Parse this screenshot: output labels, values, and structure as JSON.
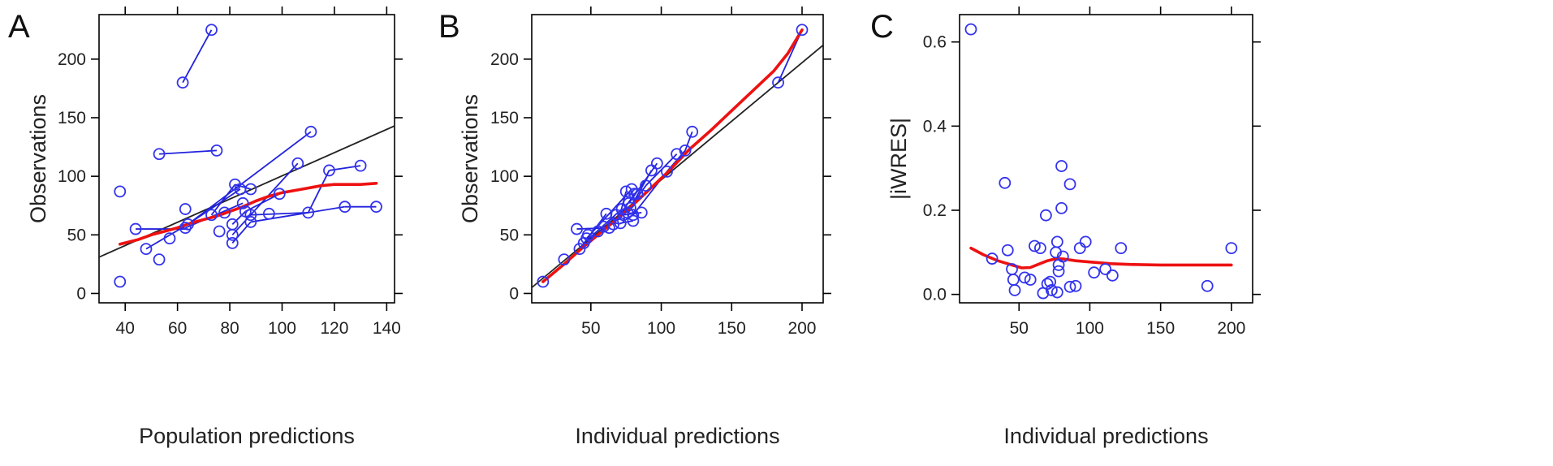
{
  "style": {
    "point_color": "#3333ee",
    "line_color": "#2222dd",
    "smooth_color": "#ee1111",
    "identity_color": "#222222",
    "axis_color": "#000000"
  },
  "chart_data": [
    {
      "type": "scatter",
      "panel_label": "A",
      "title": "",
      "xlabel": "Population predictions",
      "ylabel": "Observations",
      "xlim": [
        30,
        143
      ],
      "ylim": [
        -8,
        238
      ],
      "xticks": [
        40,
        60,
        80,
        100,
        120,
        140
      ],
      "yticks": [
        0,
        50,
        100,
        150,
        200
      ],
      "grid": false,
      "legend": "none",
      "reference_line": [
        [
          30,
          31
        ],
        [
          143,
          143
        ]
      ],
      "points": [
        [
          38,
          87
        ],
        [
          38,
          10
        ],
        [
          44,
          55
        ],
        [
          48,
          38
        ],
        [
          53,
          29
        ],
        [
          53,
          119
        ],
        [
          57,
          47
        ],
        [
          62,
          180
        ],
        [
          63,
          72
        ],
        [
          63,
          56
        ],
        [
          64,
          59
        ],
        [
          73,
          225
        ],
        [
          73,
          67
        ],
        [
          75,
          122
        ],
        [
          76,
          53
        ],
        [
          78,
          69
        ],
        [
          81,
          43
        ],
        [
          81,
          50
        ],
        [
          81,
          59
        ],
        [
          82,
          93
        ],
        [
          84,
          89
        ],
        [
          85,
          77
        ],
        [
          86,
          70
        ],
        [
          88,
          61
        ],
        [
          88,
          67
        ],
        [
          88,
          89
        ],
        [
          95,
          68
        ],
        [
          99,
          85
        ],
        [
          106,
          111
        ],
        [
          110,
          69
        ],
        [
          111,
          138
        ],
        [
          118,
          105
        ],
        [
          124,
          74
        ],
        [
          130,
          109
        ],
        [
          136,
          74
        ]
      ],
      "segments": [
        [
          [
            62,
            180
          ],
          [
            73,
            225
          ]
        ],
        [
          [
            53,
            119
          ],
          [
            75,
            122
          ]
        ],
        [
          [
            44,
            55
          ],
          [
            64,
            55
          ]
        ],
        [
          [
            48,
            38
          ],
          [
            64,
            59
          ]
        ],
        [
          [
            64,
            59
          ],
          [
            84,
            89
          ]
        ],
        [
          [
            63,
            56
          ],
          [
            85,
            77
          ]
        ],
        [
          [
            73,
            67
          ],
          [
            82,
            93
          ]
        ],
        [
          [
            82,
            93
          ],
          [
            88,
            89
          ]
        ],
        [
          [
            81,
            50
          ],
          [
            106,
            111
          ]
        ],
        [
          [
            64,
            59
          ],
          [
            111,
            138
          ]
        ],
        [
          [
            81,
            43
          ],
          [
            88,
            61
          ]
        ],
        [
          [
            88,
            67
          ],
          [
            110,
            69
          ]
        ],
        [
          [
            110,
            69
          ],
          [
            118,
            105
          ]
        ],
        [
          [
            118,
            105
          ],
          [
            130,
            109
          ]
        ],
        [
          [
            88,
            61
          ],
          [
            124,
            74
          ]
        ],
        [
          [
            124,
            74
          ],
          [
            136,
            74
          ]
        ],
        [
          [
            81,
            59
          ],
          [
            86,
            70
          ]
        ],
        [
          [
            86,
            70
          ],
          [
            99,
            85
          ]
        ]
      ],
      "smooth": [
        [
          38,
          42
        ],
        [
          45,
          46
        ],
        [
          50,
          50
        ],
        [
          55,
          53
        ],
        [
          60,
          56
        ],
        [
          65,
          60
        ],
        [
          70,
          63
        ],
        [
          75,
          66
        ],
        [
          80,
          70
        ],
        [
          85,
          74
        ],
        [
          90,
          79
        ],
        [
          95,
          83
        ],
        [
          100,
          86
        ],
        [
          105,
          88
        ],
        [
          110,
          90
        ],
        [
          115,
          92
        ],
        [
          120,
          93
        ],
        [
          125,
          93
        ],
        [
          130,
          93
        ],
        [
          136,
          94
        ]
      ]
    },
    {
      "type": "scatter",
      "panel_label": "B",
      "title": "",
      "xlabel": "Individual predictions",
      "ylabel": "Observations",
      "xlim": [
        8,
        215
      ],
      "ylim": [
        -8,
        238
      ],
      "xticks": [
        50,
        100,
        150,
        200
      ],
      "yticks": [
        0,
        50,
        100,
        150,
        200
      ],
      "grid": false,
      "legend": "none",
      "reference_line": [
        [
          8,
          5
        ],
        [
          215,
          212
        ]
      ],
      "points": [
        [
          16,
          10
        ],
        [
          31,
          29
        ],
        [
          40,
          55
        ],
        [
          42,
          38
        ],
        [
          45,
          43
        ],
        [
          47,
          47
        ],
        [
          48,
          50
        ],
        [
          55,
          53
        ],
        [
          59,
          57
        ],
        [
          61,
          68
        ],
        [
          63,
          56
        ],
        [
          66,
          59
        ],
        [
          68,
          67
        ],
        [
          70,
          64
        ],
        [
          71,
          60
        ],
        [
          72,
          72
        ],
        [
          73,
          67
        ],
        [
          75,
          87
        ],
        [
          76,
          69
        ],
        [
          77,
          77
        ],
        [
          78,
          73
        ],
        [
          79,
          89
        ],
        [
          80,
          67
        ],
        [
          80,
          62
        ],
        [
          81,
          85
        ],
        [
          83,
          85
        ],
        [
          86,
          69
        ],
        [
          89,
          92
        ],
        [
          93,
          105
        ],
        [
          97,
          111
        ],
        [
          104,
          104
        ],
        [
          111,
          119
        ],
        [
          117,
          122
        ],
        [
          122,
          138
        ],
        [
          183,
          180
        ],
        [
          200,
          225
        ]
      ],
      "segments": [
        [
          [
            183,
            180
          ],
          [
            200,
            225
          ]
        ],
        [
          [
            40,
            55
          ],
          [
            63,
            56
          ]
        ],
        [
          [
            42,
            38
          ],
          [
            61,
            68
          ]
        ],
        [
          [
            45,
            43
          ],
          [
            72,
            72
          ]
        ],
        [
          [
            47,
            47
          ],
          [
            79,
            89
          ]
        ],
        [
          [
            66,
            59
          ],
          [
            81,
            85
          ]
        ],
        [
          [
            70,
            64
          ],
          [
            75,
            87
          ]
        ],
        [
          [
            71,
            60
          ],
          [
            80,
            62
          ]
        ],
        [
          [
            73,
            67
          ],
          [
            86,
            69
          ]
        ],
        [
          [
            76,
            69
          ],
          [
            93,
            105
          ]
        ],
        [
          [
            77,
            77
          ],
          [
            97,
            111
          ]
        ],
        [
          [
            78,
            73
          ],
          [
            89,
            92
          ]
        ],
        [
          [
            80,
            67
          ],
          [
            104,
            104
          ]
        ],
        [
          [
            89,
            92
          ],
          [
            111,
            119
          ]
        ],
        [
          [
            104,
            104
          ],
          [
            117,
            122
          ]
        ],
        [
          [
            117,
            122
          ],
          [
            122,
            138
          ]
        ]
      ],
      "smooth": [
        [
          16,
          10
        ],
        [
          30,
          24
        ],
        [
          45,
          40
        ],
        [
          60,
          55
        ],
        [
          75,
          70
        ],
        [
          90,
          87
        ],
        [
          105,
          104
        ],
        [
          120,
          123
        ],
        [
          135,
          139
        ],
        [
          150,
          156
        ],
        [
          165,
          173
        ],
        [
          180,
          190
        ],
        [
          190,
          205
        ],
        [
          200,
          225
        ]
      ]
    },
    {
      "type": "scatter",
      "panel_label": "C",
      "title": "",
      "xlabel": "Individual predictions",
      "ylabel": "|iWRES|",
      "xlim": [
        8,
        215
      ],
      "ylim": [
        -0.02,
        0.665
      ],
      "xticks": [
        50,
        100,
        150,
        200
      ],
      "yticks": [
        0.0,
        0.2,
        0.4,
        0.6
      ],
      "ytick_labels": [
        "0.0",
        "0.2",
        "0.4",
        "0.6"
      ],
      "grid": false,
      "legend": "none",
      "points": [
        [
          16,
          0.63
        ],
        [
          31,
          0.085
        ],
        [
          40,
          0.265
        ],
        [
          42,
          0.105
        ],
        [
          45,
          0.06
        ],
        [
          46,
          0.035
        ],
        [
          47,
          0.01
        ],
        [
          54,
          0.04
        ],
        [
          58,
          0.035
        ],
        [
          61,
          0.115
        ],
        [
          65,
          0.11
        ],
        [
          67,
          0.003
        ],
        [
          69,
          0.188
        ],
        [
          70,
          0.025
        ],
        [
          72,
          0.03
        ],
        [
          73,
          0.01
        ],
        [
          76,
          0.1
        ],
        [
          77,
          0.125
        ],
        [
          77,
          0.005
        ],
        [
          78,
          0.07
        ],
        [
          78,
          0.055
        ],
        [
          80,
          0.305
        ],
        [
          80,
          0.205
        ],
        [
          81,
          0.09
        ],
        [
          86,
          0.262
        ],
        [
          86,
          0.018
        ],
        [
          90,
          0.02
        ],
        [
          93,
          0.11
        ],
        [
          97,
          0.125
        ],
        [
          103,
          0.052
        ],
        [
          111,
          0.06
        ],
        [
          116,
          0.045
        ],
        [
          122,
          0.11
        ],
        [
          183,
          0.02
        ],
        [
          200,
          0.11
        ]
      ],
      "segments": [],
      "smooth": [
        [
          16,
          0.11
        ],
        [
          25,
          0.094
        ],
        [
          35,
          0.08
        ],
        [
          45,
          0.07
        ],
        [
          52,
          0.063
        ],
        [
          58,
          0.064
        ],
        [
          64,
          0.072
        ],
        [
          70,
          0.08
        ],
        [
          76,
          0.085
        ],
        [
          82,
          0.084
        ],
        [
          90,
          0.08
        ],
        [
          100,
          0.077
        ],
        [
          115,
          0.073
        ],
        [
          130,
          0.071
        ],
        [
          150,
          0.07
        ],
        [
          175,
          0.07
        ],
        [
          200,
          0.07
        ]
      ]
    }
  ]
}
